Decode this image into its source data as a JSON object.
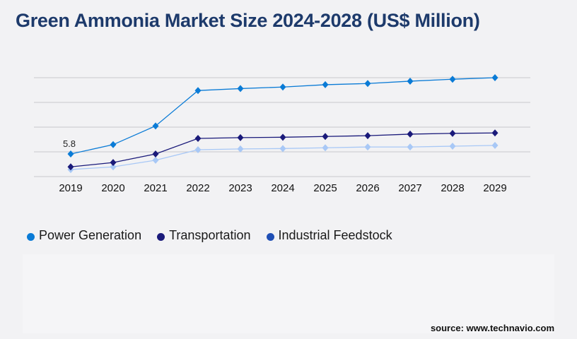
{
  "chart_data": {
    "type": "line",
    "title": "Green Ammonia Market Size 2024-2028 (US$ Million)",
    "xlabel": "",
    "ylabel": "",
    "categories": [
      "2019",
      "2020",
      "2021",
      "2022",
      "2023",
      "2024",
      "2025",
      "2026",
      "2027",
      "2028",
      "2029"
    ],
    "ylim": [
      0,
      25.4
    ],
    "grid": true,
    "legend_position": "bottom-left",
    "series": [
      {
        "name": "Power Generation",
        "color": "#0a7bd6",
        "legend_color": "#0a7bd6",
        "values": [
          5.8,
          8.2,
          13.0,
          22.1,
          22.6,
          23.0,
          23.6,
          23.9,
          24.5,
          25.0,
          25.4
        ]
      },
      {
        "name": "Transportation",
        "color": "#1a1a7a",
        "legend_color": "#1a1a7a",
        "values": [
          2.5,
          3.6,
          5.8,
          9.8,
          10.0,
          10.1,
          10.3,
          10.5,
          10.9,
          11.1,
          11.2
        ]
      },
      {
        "name": "Industrial Feedstock",
        "color": "#a8c8f6",
        "legend_color": "#1f4fb5",
        "values": [
          1.8,
          2.5,
          4.2,
          6.9,
          7.1,
          7.2,
          7.4,
          7.6,
          7.6,
          7.8,
          8.0
        ]
      }
    ],
    "annotations": [
      {
        "series": 0,
        "index": 0,
        "text": "5.8"
      }
    ]
  },
  "source": "source: www.technavio.com"
}
